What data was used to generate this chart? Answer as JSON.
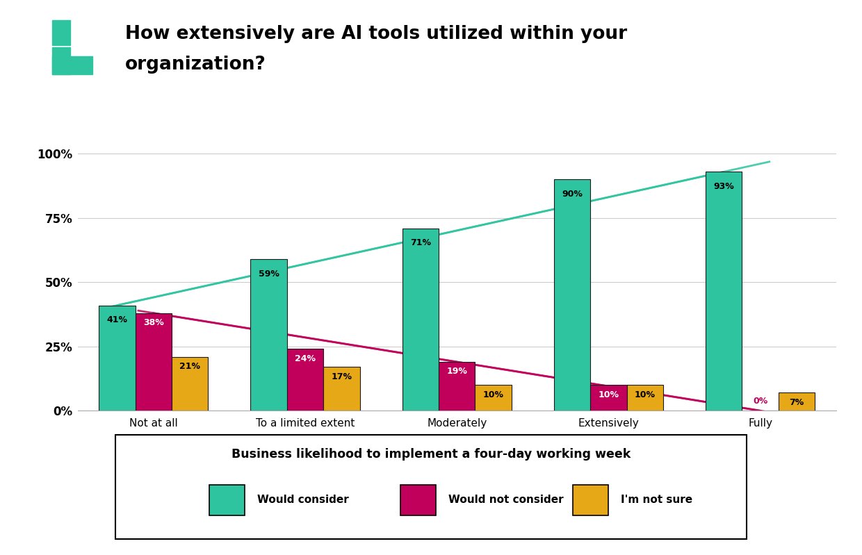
{
  "title_line1": "How extensively are AI tools utilized within your",
  "title_line2": "organization?",
  "categories": [
    "Not at all",
    "To a limited extent",
    "Moderately",
    "Extensively",
    "Fully"
  ],
  "would_consider": [
    41,
    59,
    71,
    90,
    93
  ],
  "would_not_consider": [
    38,
    24,
    19,
    10,
    0
  ],
  "not_sure": [
    21,
    17,
    10,
    10,
    7
  ],
  "color_consider": "#2ec4a0",
  "color_not_consider": "#c0005a",
  "color_not_sure": "#e6a817",
  "color_border": "#1a1a1a",
  "bar_width": 0.24,
  "ylim": [
    0,
    108
  ],
  "yticks": [
    0,
    25,
    50,
    75,
    100
  ],
  "ytick_labels": [
    "0%",
    "25%",
    "50%",
    "75%",
    "100%"
  ],
  "legend_title": "Business likelihood to implement a four-day working week",
  "legend_items": [
    "Would consider",
    "Would not consider",
    "I'm not sure"
  ],
  "background_color": "#ffffff",
  "trend_consider_color": "#2ec4a0",
  "trend_not_consider_color": "#c0005a"
}
